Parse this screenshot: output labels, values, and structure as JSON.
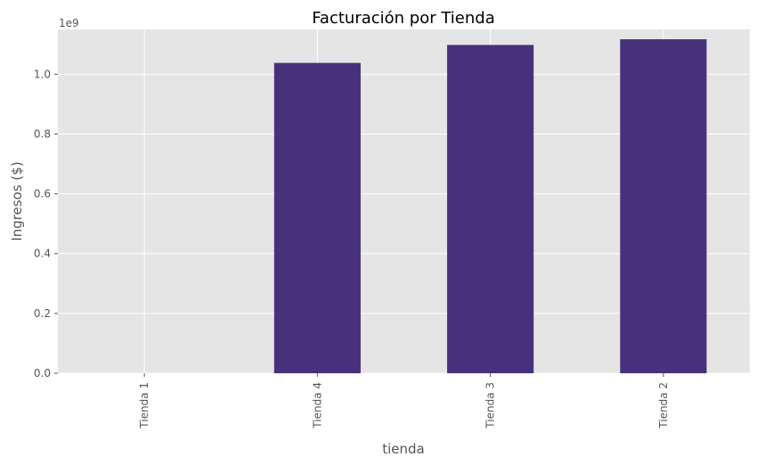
{
  "chart_data": {
    "type": "bar",
    "title": "Facturación por Tienda",
    "xlabel": "tienda",
    "ylabel": "Ingresos ($)",
    "y_offset_label": "1e9",
    "categories": [
      "Tienda 1",
      "Tienda 4",
      "Tienda 3",
      "Tienda 2"
    ],
    "values": [
      0,
      1038000000,
      1098000000,
      1117000000
    ],
    "ylim": [
      0,
      1150000000
    ],
    "yticks": [
      0,
      200000000,
      400000000,
      600000000,
      800000000,
      1000000000
    ],
    "ytick_labels": [
      "0.0",
      "0.2",
      "0.4",
      "0.6",
      "0.8",
      "1.0"
    ],
    "grid": true,
    "colors": {
      "bar": "#48317c",
      "plot_background": "#e5e5e5",
      "grid": "#ffffff"
    }
  }
}
